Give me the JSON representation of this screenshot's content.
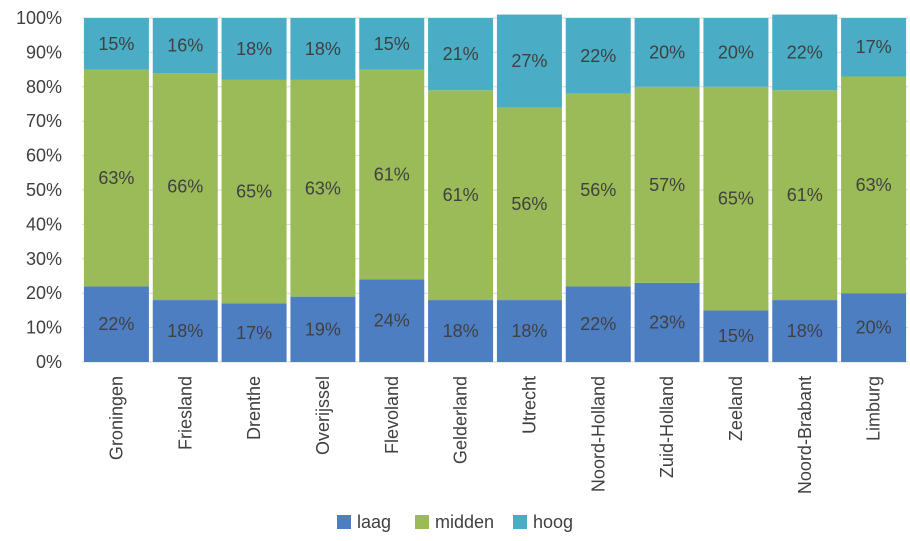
{
  "chart_data": {
    "type": "bar",
    "stacked": true,
    "percent": true,
    "categories": [
      "Groningen",
      "Friesland",
      "Drenthe",
      "Overijssel",
      "Flevoland",
      "Gelderland",
      "Utrecht",
      "Noord-Holland",
      "Zuid-Holland",
      "Zeeland",
      "Noord-Brabant",
      "Limburg"
    ],
    "series": [
      {
        "name": "laag",
        "color": "#4e7ec2",
        "values": [
          22,
          18,
          17,
          19,
          24,
          18,
          18,
          22,
          23,
          15,
          18,
          20
        ]
      },
      {
        "name": "midden",
        "color": "#9bbb59",
        "values": [
          63,
          66,
          65,
          63,
          61,
          61,
          56,
          56,
          57,
          65,
          61,
          63
        ]
      },
      {
        "name": "hoog",
        "color": "#4bacc6",
        "values": [
          15,
          16,
          18,
          18,
          15,
          21,
          27,
          22,
          20,
          20,
          22,
          17
        ]
      }
    ],
    "ylim": [
      0,
      100
    ],
    "yticks": [
      "0%",
      "10%",
      "20%",
      "30%",
      "40%",
      "50%",
      "60%",
      "70%",
      "80%",
      "90%",
      "100%"
    ],
    "grid": true,
    "legend_position": "bottom"
  }
}
